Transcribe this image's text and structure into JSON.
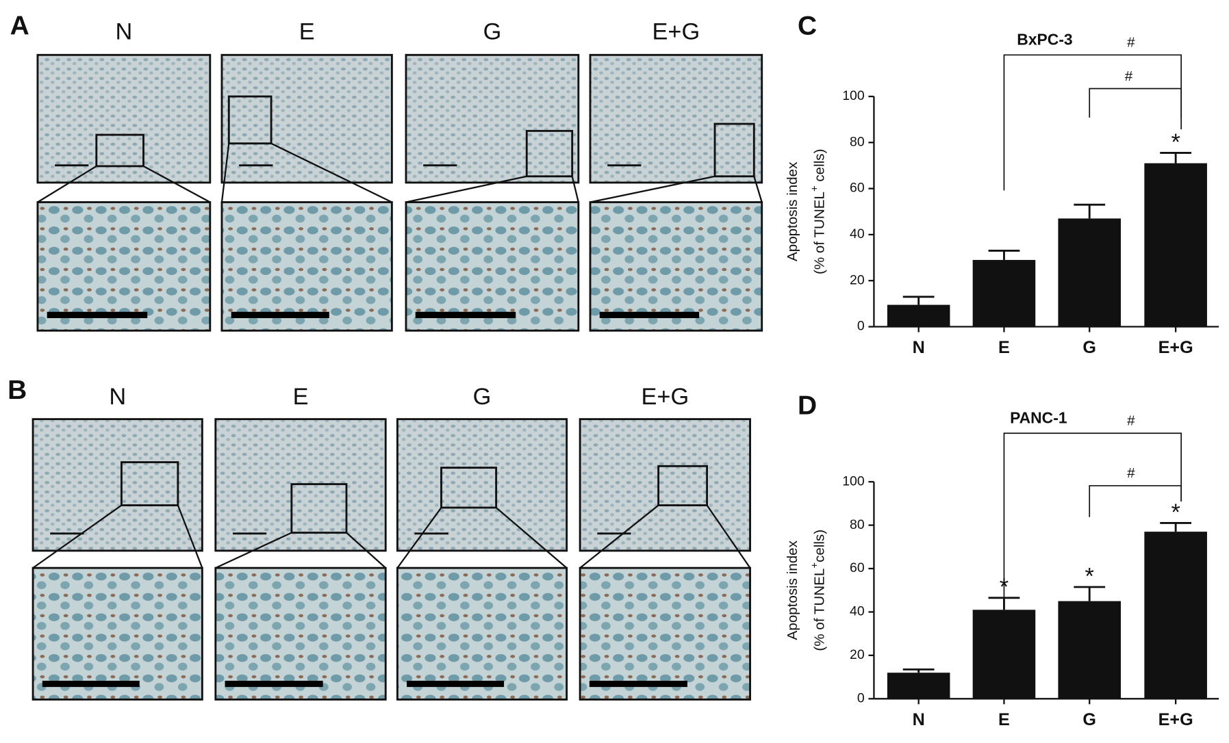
{
  "panels": [
    {
      "label": "A",
      "columns": [
        "N",
        "E",
        "G",
        "E+G"
      ]
    },
    {
      "label": "B",
      "columns": [
        "N",
        "E",
        "G",
        "E+G"
      ]
    }
  ],
  "chart_data": [
    {
      "type": "bar",
      "panel_label": "C",
      "title": "BxPC-3",
      "ylabel": [
        "Apoptosis index",
        "(% of TUNEL",
        "+",
        " cells)"
      ],
      "categories": [
        "N",
        "E",
        "G",
        "E+G"
      ],
      "values": [
        9.5,
        29,
        47,
        71
      ],
      "errors": [
        3.5,
        4,
        6,
        4.5
      ],
      "color": "#111111",
      "ylim": [
        0,
        100
      ],
      "yticks": [
        0,
        20,
        40,
        60,
        80,
        100
      ],
      "star_labels": [
        null,
        null,
        null,
        "*"
      ],
      "brackets": [
        {
          "label": "#"
        },
        {
          "label": "#"
        }
      ]
    },
    {
      "type": "bar",
      "panel_label": "D",
      "title": "PANC-1",
      "ylabel": [
        "Apoptosis index",
        "(% of TUNEL",
        "+",
        "cells)"
      ],
      "categories": [
        "N",
        "E",
        "G",
        "E+G"
      ],
      "values": [
        12,
        41,
        45,
        77
      ],
      "errors": [
        1.5,
        5.5,
        6.5,
        4
      ],
      "color": "#111111",
      "ylim": [
        0,
        100
      ],
      "yticks": [
        0,
        20,
        40,
        60,
        80,
        100
      ],
      "star_labels": [
        null,
        "*",
        "*",
        "*"
      ],
      "brackets": [
        {
          "label": "#"
        },
        {
          "label": "#"
        }
      ]
    }
  ]
}
